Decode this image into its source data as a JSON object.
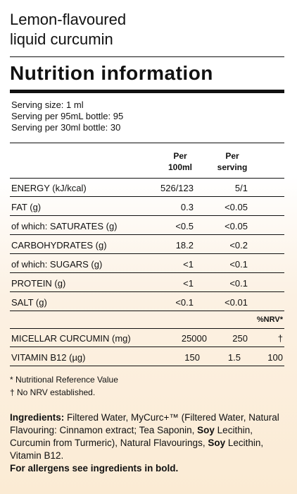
{
  "product": {
    "title_line1": "Lemon-flavoured",
    "title_line2": "liquid curcumin"
  },
  "heading": "Nutrition information",
  "serving": {
    "size": "Serving size: 1 ml",
    "per_95": "Serving per 95mL bottle: 95",
    "per_30": "Serving per 30ml bottle: 30"
  },
  "table": {
    "col1_line1": "Per",
    "col1_line2": "100ml",
    "col2_line1": "Per",
    "col2_line2": "serving",
    "nrv_header": "%NRV*",
    "rows": [
      {
        "label": "ENERGY (kJ/kcal)",
        "per100": "526/123",
        "perserving": "5/1"
      },
      {
        "label": "FAT (g)",
        "per100": "0.3",
        "perserving": "<0.05"
      },
      {
        "label": "of which: SATURATES (g)",
        "per100": "<0.5",
        "perserving": "<0.05"
      },
      {
        "label": "CARBOHYDRATES (g)",
        "per100": "18.2",
        "perserving": "<0.2"
      },
      {
        "label": "of which: SUGARS (g)",
        "per100": "<1",
        "perserving": "<0.1"
      },
      {
        "label": "PROTEIN (g)",
        "per100": "<1",
        "perserving": "<0.1"
      },
      {
        "label": "SALT (g)",
        "per100": "<0.1",
        "perserving": "<0.01"
      }
    ],
    "nrv_rows": [
      {
        "label": "MICELLAR CURCUMIN (mg)",
        "per100": "25000",
        "perserving": "250",
        "nrv": "†"
      },
      {
        "label": "VITAMIN B12 (µg)",
        "per100": "150",
        "perserving": "1.5",
        "nrv": "100"
      }
    ]
  },
  "notes": {
    "nrv_note": "* Nutritional Reference Value",
    "dagger_note": "† No NRV established."
  },
  "ingredients": {
    "label": "Ingredients:",
    "text_a": " Filtered Water, MyCurc+™ (Filtered Water, Natural Flavouring: Cinnamon extract; Tea Saponin, ",
    "soy1": "Soy",
    "text_b": " Lecithin, Curcumin from Turmeric), Natural Flavourings, ",
    "soy2": "Soy",
    "text_c": " Lecithin, Vitamin B12.",
    "allergen_note": "For allergens see ingredients in bold."
  }
}
